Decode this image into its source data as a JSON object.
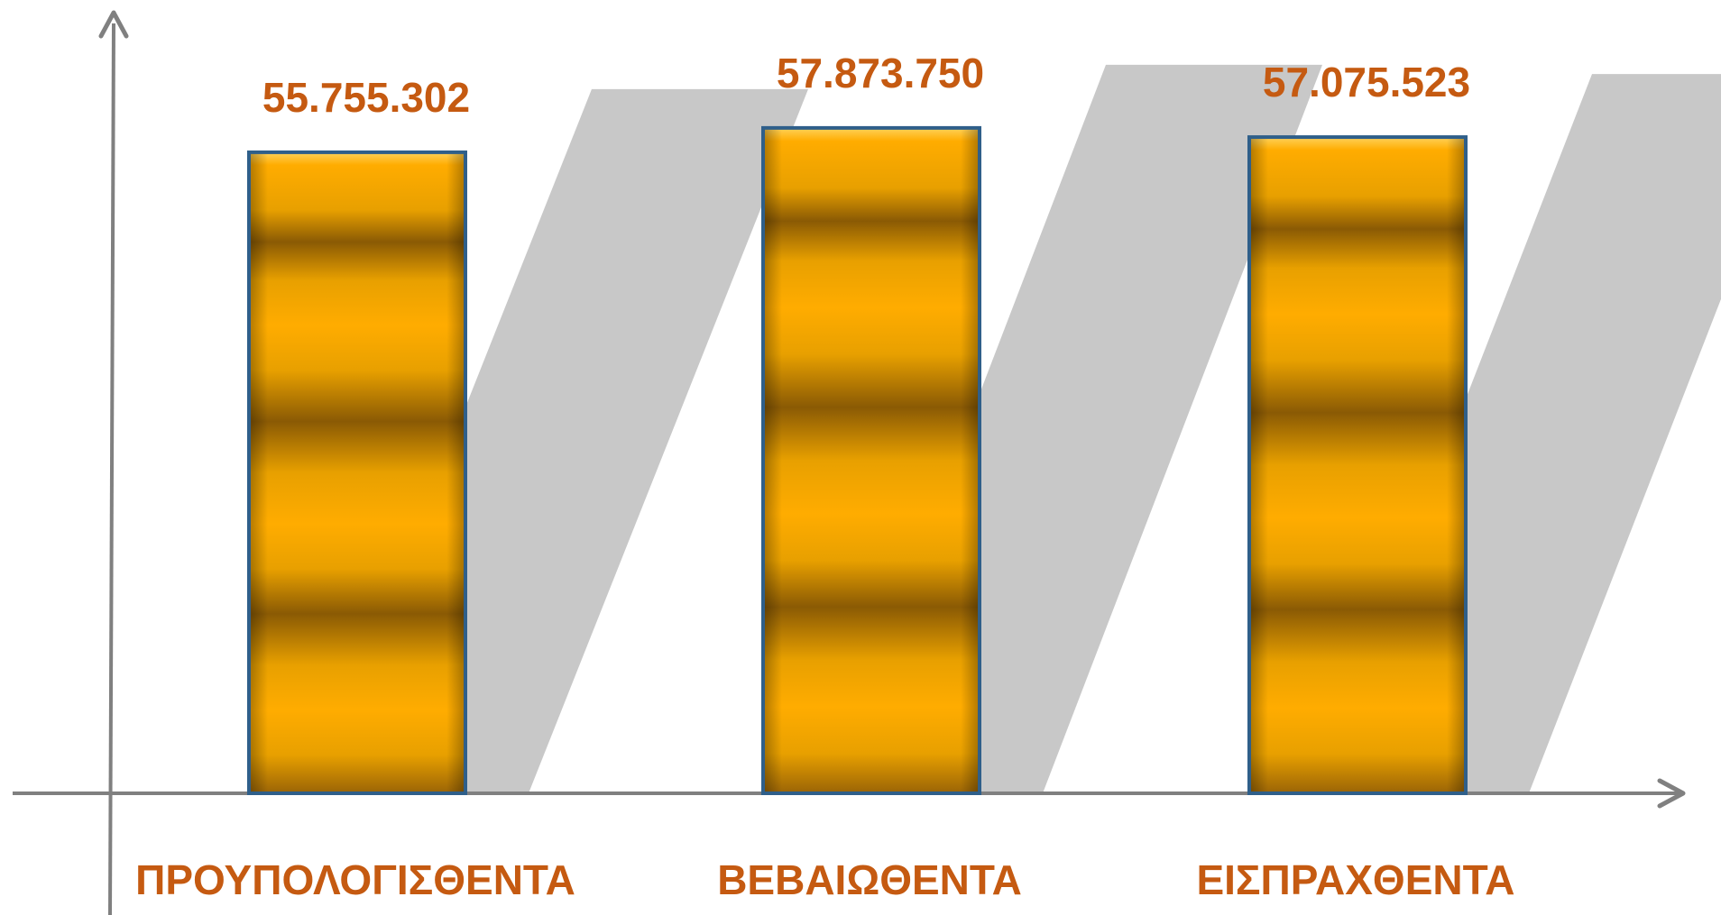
{
  "chart_data": {
    "type": "bar",
    "categories": [
      "ΠΡΟΥΠΟΛΟΓΙΣΘΕΝΤΑ",
      "ΒΕΒΑΙΩΘΕΝΤΑ",
      "ΕΙΣΠΡΑΧΘΕΝΤΑ"
    ],
    "values": [
      55755302,
      57873750,
      57075523
    ],
    "value_labels": [
      "55.755.302",
      "57.873.750",
      "57.075.523"
    ],
    "title": "",
    "xlabel": "",
    "ylabel": "",
    "ylim": [
      0,
      69000000
    ],
    "grid": false,
    "legend": "none",
    "style": {
      "bar_style": "gold-gradient-3d",
      "shadow": true
    }
  },
  "colors": {
    "label": "#C55A11",
    "axis": "#808080",
    "bar_light": "#FFB000",
    "bar_dark": "#8A5A04",
    "bar_border": "#2F5F8A",
    "shadow": "#C8C8C8"
  }
}
